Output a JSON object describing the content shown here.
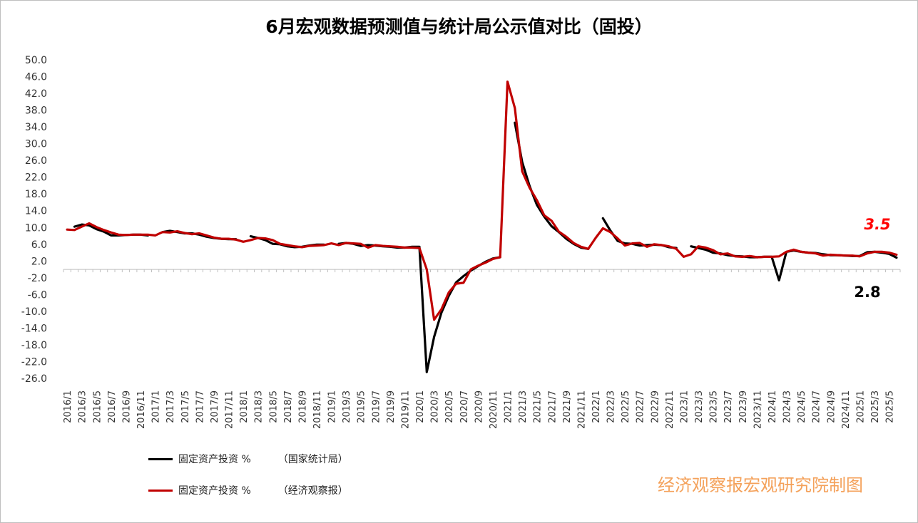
{
  "title": "6月宏观数据预测值与统计局公示值对比（固投）",
  "credit": "经济观察报宏观研究院制图",
  "legend": [
    {
      "label": "固定资产投资 %",
      "source": "（国家统计局）",
      "color": "#000000"
    },
    {
      "label": "固定资产投资 %",
      "source": "（经济观察报）",
      "color": "#c00000"
    }
  ],
  "chart_data": {
    "type": "line",
    "title": "6月宏观数据预测值与统计局公示值对比（固投）",
    "xlabel": "",
    "ylabel": "",
    "ylim": [
      -26,
      50
    ],
    "y_ticks": [
      "50.0",
      "46.0",
      "42.0",
      "38.0",
      "34.0",
      "30.0",
      "26.0",
      "22.0",
      "18.0",
      "14.0",
      "10.0",
      "6.0",
      "2.0",
      "-2.0",
      "-6.0",
      "-10.0",
      "-14.0",
      "-18.0",
      "-22.0",
      "-26.0"
    ],
    "x_tick_labels": [
      "2016/1",
      "2016/3",
      "2016/5",
      "2016/7",
      "2016/9",
      "2016/11",
      "2017/1",
      "2017/3",
      "2017/5",
      "2017/7",
      "2017/9",
      "2017/11",
      "2018/1",
      "2018/3",
      "2018/5",
      "2018/7",
      "2018/9",
      "2018/11",
      "2019/1",
      "2019/3",
      "2019/5",
      "2019/7",
      "2019/9",
      "2019/11",
      "2020/1",
      "2020/3",
      "2020/5",
      "2020/7",
      "2020/9",
      "2020/11",
      "2021/1",
      "2021/3",
      "2021/5",
      "2021/7",
      "2021/9",
      "2021/11",
      "2022/1",
      "2022/3",
      "2022/5",
      "2022/7",
      "2022/9",
      "2022/11",
      "2023/1",
      "2023/3",
      "2023/5",
      "2023/7",
      "2023/9",
      "2023/11",
      "2024/1",
      "2024/3",
      "2024/5",
      "2024/7",
      "2024/9",
      "2024/11",
      "2025/1",
      "2025/3",
      "2025/5"
    ],
    "x_start": "2016/1",
    "x_end": "2025/6",
    "legend_position": "bottom-left",
    "grid": false,
    "series": [
      {
        "name": "固定资产投资 %（国家统计局）",
        "color": "#000000",
        "points": [
          [
            "2016/2",
            10.2
          ],
          [
            "2016/3",
            10.7
          ],
          [
            "2016/4",
            10.5
          ],
          [
            "2016/5",
            9.6
          ],
          [
            "2016/6",
            9.0
          ],
          [
            "2016/7",
            8.1
          ],
          [
            "2016/8",
            8.1
          ],
          [
            "2016/9",
            8.2
          ],
          [
            "2016/10",
            8.3
          ],
          [
            "2016/11",
            8.3
          ],
          [
            "2016/12",
            8.1
          ],
          [
            "2017/2",
            8.9
          ],
          [
            "2017/3",
            9.2
          ],
          [
            "2017/4",
            8.9
          ],
          [
            "2017/5",
            8.6
          ],
          [
            "2017/6",
            8.6
          ],
          [
            "2017/7",
            8.3
          ],
          [
            "2017/8",
            7.8
          ],
          [
            "2017/9",
            7.5
          ],
          [
            "2017/10",
            7.3
          ],
          [
            "2017/11",
            7.2
          ],
          [
            "2017/12",
            7.2
          ],
          [
            "2018/2",
            7.9
          ],
          [
            "2018/3",
            7.5
          ],
          [
            "2018/4",
            7.0
          ],
          [
            "2018/5",
            6.1
          ],
          [
            "2018/6",
            6.0
          ],
          [
            "2018/7",
            5.5
          ],
          [
            "2018/8",
            5.3
          ],
          [
            "2018/9",
            5.4
          ],
          [
            "2018/10",
            5.7
          ],
          [
            "2018/11",
            5.9
          ],
          [
            "2018/12",
            5.9
          ],
          [
            "2019/2",
            6.1
          ],
          [
            "2019/3",
            6.3
          ],
          [
            "2019/4",
            6.1
          ],
          [
            "2019/5",
            5.6
          ],
          [
            "2019/6",
            5.8
          ],
          [
            "2019/7",
            5.7
          ],
          [
            "2019/8",
            5.5
          ],
          [
            "2019/9",
            5.4
          ],
          [
            "2019/10",
            5.2
          ],
          [
            "2019/11",
            5.2
          ],
          [
            "2019/12",
            5.4
          ],
          [
            "2020/1",
            5.4
          ],
          [
            "2020/2",
            -24.5
          ],
          [
            "2020/3",
            -16.1
          ],
          [
            "2020/4",
            -10.3
          ],
          [
            "2020/5",
            -6.3
          ],
          [
            "2020/6",
            -3.1
          ],
          [
            "2020/7",
            -1.6
          ],
          [
            "2020/8",
            -0.3
          ],
          [
            "2020/9",
            0.8
          ],
          [
            "2020/10",
            1.8
          ],
          [
            "2020/11",
            2.6
          ],
          [
            "2020/12",
            2.9
          ],
          [
            "2021/2",
            35.0
          ],
          [
            "2021/3",
            25.6
          ],
          [
            "2021/4",
            19.9
          ],
          [
            "2021/5",
            15.4
          ],
          [
            "2021/6",
            12.6
          ],
          [
            "2021/7",
            10.3
          ],
          [
            "2021/8",
            8.9
          ],
          [
            "2021/9",
            7.3
          ],
          [
            "2021/10",
            6.1
          ],
          [
            "2021/11",
            5.2
          ],
          [
            "2021/12",
            4.9
          ],
          [
            "2022/2",
            12.2
          ],
          [
            "2022/3",
            9.3
          ],
          [
            "2022/4",
            6.8
          ],
          [
            "2022/5",
            6.2
          ],
          [
            "2022/6",
            6.1
          ],
          [
            "2022/7",
            5.7
          ],
          [
            "2022/8",
            5.8
          ],
          [
            "2022/9",
            5.9
          ],
          [
            "2022/10",
            5.8
          ],
          [
            "2022/11",
            5.3
          ],
          [
            "2022/12",
            5.1
          ],
          [
            "2023/2",
            5.5
          ],
          [
            "2023/3",
            5.1
          ],
          [
            "2023/4",
            4.7
          ],
          [
            "2023/5",
            4.0
          ],
          [
            "2023/6",
            3.8
          ],
          [
            "2023/7",
            3.4
          ],
          [
            "2023/8",
            3.2
          ],
          [
            "2023/9",
            3.1
          ],
          [
            "2023/10",
            2.9
          ],
          [
            "2023/11",
            2.9
          ],
          [
            "2023/12",
            3.0
          ],
          [
            "2024/1",
            3.0
          ],
          [
            "2024/2",
            -2.6
          ],
          [
            "2024/3",
            4.2
          ],
          [
            "2024/4",
            4.5
          ],
          [
            "2024/5",
            4.2
          ],
          [
            "2024/6",
            4.0
          ],
          [
            "2024/7",
            3.9
          ],
          [
            "2024/8",
            3.6
          ],
          [
            "2024/9",
            3.4
          ],
          [
            "2024/10",
            3.4
          ],
          [
            "2024/11",
            3.3
          ],
          [
            "2024/12",
            3.2
          ],
          [
            "2025/1",
            3.2
          ],
          [
            "2025/2",
            4.1
          ],
          [
            "2025/3",
            4.2
          ],
          [
            "2025/4",
            4.0
          ],
          [
            "2025/5",
            3.7
          ],
          [
            "2025/6",
            2.8
          ]
        ]
      },
      {
        "name": "固定资产投资 %（经济观察报）",
        "color": "#c00000",
        "points": [
          [
            "2016/1",
            9.5
          ],
          [
            "2016/2",
            9.4
          ],
          [
            "2016/3",
            10.2
          ],
          [
            "2016/4",
            11.0
          ],
          [
            "2016/5",
            10.1
          ],
          [
            "2016/6",
            9.4
          ],
          [
            "2016/7",
            8.8
          ],
          [
            "2016/8",
            8.3
          ],
          [
            "2016/9",
            8.2
          ],
          [
            "2016/10",
            8.3
          ],
          [
            "2016/11",
            8.3
          ],
          [
            "2016/12",
            8.3
          ],
          [
            "2017/1",
            8.1
          ],
          [
            "2017/2",
            8.9
          ],
          [
            "2017/3",
            8.8
          ],
          [
            "2017/4",
            9.1
          ],
          [
            "2017/5",
            8.7
          ],
          [
            "2017/6",
            8.4
          ],
          [
            "2017/7",
            8.6
          ],
          [
            "2017/8",
            8.1
          ],
          [
            "2017/9",
            7.6
          ],
          [
            "2017/10",
            7.3
          ],
          [
            "2017/11",
            7.3
          ],
          [
            "2017/12",
            7.1
          ],
          [
            "2018/1",
            6.6
          ],
          [
            "2018/2",
            7.0
          ],
          [
            "2018/3",
            7.5
          ],
          [
            "2018/4",
            7.4
          ],
          [
            "2018/5",
            7.0
          ],
          [
            "2018/6",
            6.1
          ],
          [
            "2018/7",
            5.8
          ],
          [
            "2018/8",
            5.5
          ],
          [
            "2018/9",
            5.3
          ],
          [
            "2018/10",
            5.6
          ],
          [
            "2018/11",
            5.7
          ],
          [
            "2018/12",
            5.8
          ],
          [
            "2019/1",
            6.2
          ],
          [
            "2019/2",
            5.8
          ],
          [
            "2019/3",
            6.3
          ],
          [
            "2019/4",
            6.2
          ],
          [
            "2019/5",
            6.1
          ],
          [
            "2019/6",
            5.2
          ],
          [
            "2019/7",
            5.8
          ],
          [
            "2019/8",
            5.6
          ],
          [
            "2019/9",
            5.5
          ],
          [
            "2019/10",
            5.4
          ],
          [
            "2019/11",
            5.2
          ],
          [
            "2019/12",
            5.2
          ],
          [
            "2020/1",
            5.1
          ],
          [
            "2020/2",
            0.0
          ],
          [
            "2020/3",
            -12.0
          ],
          [
            "2020/4",
            -9.5
          ],
          [
            "2020/5",
            -5.5
          ],
          [
            "2020/6",
            -3.4
          ],
          [
            "2020/7",
            -3.2
          ],
          [
            "2020/8",
            0.0
          ],
          [
            "2020/9",
            0.9
          ],
          [
            "2020/10",
            1.6
          ],
          [
            "2020/11",
            2.5
          ],
          [
            "2020/12",
            2.9
          ],
          [
            "2021/1",
            44.8
          ],
          [
            "2021/2",
            38.5
          ],
          [
            "2021/3",
            23.4
          ],
          [
            "2021/4",
            19.5
          ],
          [
            "2021/5",
            16.5
          ],
          [
            "2021/6",
            12.9
          ],
          [
            "2021/7",
            11.6
          ],
          [
            "2021/8",
            9.0
          ],
          [
            "2021/9",
            7.8
          ],
          [
            "2021/10",
            6.3
          ],
          [
            "2021/11",
            5.4
          ],
          [
            "2021/12",
            4.9
          ],
          [
            "2022/1",
            7.5
          ],
          [
            "2022/2",
            9.8
          ],
          [
            "2022/3",
            8.9
          ],
          [
            "2022/4",
            7.4
          ],
          [
            "2022/5",
            5.7
          ],
          [
            "2022/6",
            6.2
          ],
          [
            "2022/7",
            6.3
          ],
          [
            "2022/8",
            5.4
          ],
          [
            "2022/9",
            6.0
          ],
          [
            "2022/10",
            5.8
          ],
          [
            "2022/11",
            5.5
          ],
          [
            "2022/12",
            4.9
          ],
          [
            "2023/1",
            3.0
          ],
          [
            "2023/2",
            3.6
          ],
          [
            "2023/3",
            5.5
          ],
          [
            "2023/4",
            5.2
          ],
          [
            "2023/5",
            4.6
          ],
          [
            "2023/6",
            3.6
          ],
          [
            "2023/7",
            3.8
          ],
          [
            "2023/8",
            3.1
          ],
          [
            "2023/9",
            3.0
          ],
          [
            "2023/10",
            3.2
          ],
          [
            "2023/11",
            2.9
          ],
          [
            "2023/12",
            3.0
          ],
          [
            "2024/1",
            3.0
          ],
          [
            "2024/2",
            3.1
          ],
          [
            "2024/3",
            4.2
          ],
          [
            "2024/4",
            4.7
          ],
          [
            "2024/5",
            4.2
          ],
          [
            "2024/6",
            4.0
          ],
          [
            "2024/7",
            3.8
          ],
          [
            "2024/8",
            3.3
          ],
          [
            "2024/9",
            3.5
          ],
          [
            "2024/10",
            3.4
          ],
          [
            "2024/11",
            3.3
          ],
          [
            "2024/12",
            3.3
          ],
          [
            "2025/1",
            3.1
          ],
          [
            "2025/2",
            3.8
          ],
          [
            "2025/3",
            4.2
          ],
          [
            "2025/4",
            4.2
          ],
          [
            "2025/5",
            4.0
          ],
          [
            "2025/6",
            3.5
          ]
        ]
      }
    ],
    "annotations": [
      {
        "text": "3.5",
        "series": 1,
        "color": "#ff0000",
        "style": "bold italic"
      },
      {
        "text": "2.8",
        "series": 0,
        "color": "#000000",
        "style": "bold"
      }
    ]
  }
}
